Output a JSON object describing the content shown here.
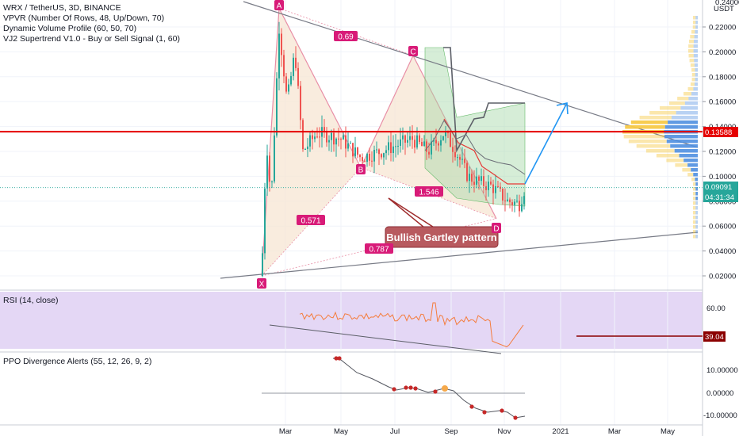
{
  "header": {
    "title": "WRX / TetherUS, 3D, BINANCE",
    "indicators": [
      "VPVR (Number Of Rows, 48, Up/Down, 70)",
      "Dynamic Volume Profile (60, 50, 70)",
      "VJ2 Supertrend V1.0 - Buy or Sell Signal (1, 60)"
    ]
  },
  "axis": {
    "unit": "USDT",
    "top_tick": "0.24000",
    "price_ticks": [
      {
        "label": "0.22000",
        "v": 0.22
      },
      {
        "label": "0.20000",
        "v": 0.2
      },
      {
        "label": "0.18000",
        "v": 0.18
      },
      {
        "label": "0.16000",
        "v": 0.16
      },
      {
        "label": "0.14000",
        "v": 0.14
      },
      {
        "label": "0.12000",
        "v": 0.12
      },
      {
        "label": "0.10000",
        "v": 0.1
      },
      {
        "label": "0.08000",
        "v": 0.08
      },
      {
        "label": "0.06000",
        "v": 0.06
      },
      {
        "label": "0.04000",
        "v": 0.04
      },
      {
        "label": "0.02000",
        "v": 0.02
      }
    ],
    "time_labels": [
      "Mar",
      "May",
      "Jul",
      "Sep",
      "Nov",
      "2021",
      "Mar",
      "May"
    ]
  },
  "price_tags": {
    "resistance": "0.13588",
    "last_price": "0.09091",
    "countdown": "04:31:34"
  },
  "pattern": {
    "points": {
      "X": 0.02,
      "A": 0.235,
      "B": 0.107,
      "C": 0.197,
      "D": 0.066
    },
    "labels": {
      "X": "X",
      "A": "A",
      "B": "B",
      "C": "C",
      "D": "D"
    },
    "ratios": {
      "xb": "0.571",
      "ac": "0.69",
      "bd": "1.546",
      "xd": "0.787"
    },
    "callout": "Bullish Gartley pattern",
    "target": 0.16
  },
  "rsi": {
    "title": "RSI (14, close)",
    "tick": "60.00",
    "value": "39.04"
  },
  "ppo": {
    "title": "PPO Divergence Alerts (55, 12, 26, 9, 2)",
    "ticks": [
      "10.00000",
      "0.00000",
      "-10.00000"
    ]
  },
  "colors": {
    "pattern_fill": "#f7e6d3",
    "pattern_line": "#e88fa6",
    "label_bg": "#d81b78",
    "resistance": "#e50000",
    "candle_up": "#26a69a",
    "candle_down": "#ef5350",
    "target_arrow": "#2196f3",
    "rsi_band": "#e4d7f5",
    "rsi_line": "#f57c3b",
    "callout_bg": "#b85a5f"
  },
  "chart_data": {
    "type": "candlestick",
    "title": "WRX / TetherUS, 3D, BINANCE",
    "ylabel": "USDT",
    "ylim": [
      0.005,
      0.245
    ],
    "annotations": [
      "Bullish Gartley pattern",
      "0.69",
      "0.571",
      "1.546",
      "0.787"
    ],
    "pivot_prices": {
      "X": 0.02,
      "A": 0.235,
      "B": 0.107,
      "C": 0.197,
      "D": 0.066
    },
    "resistance_level": 0.13588,
    "last_price": 0.09091,
    "rsi_last": 39.04,
    "ppo_range": [
      -10,
      10
    ]
  }
}
